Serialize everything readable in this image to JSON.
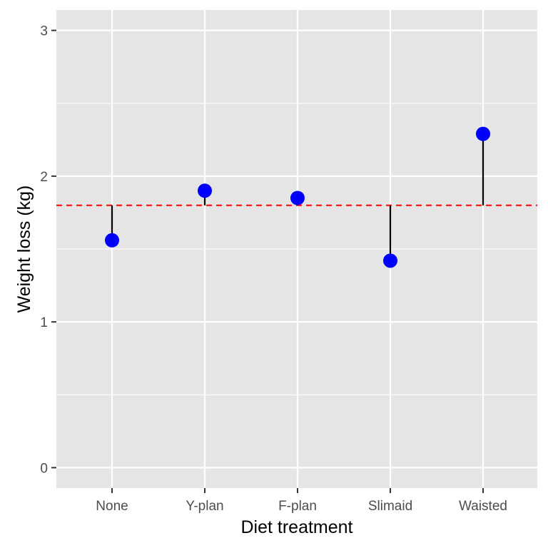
{
  "chart_data": {
    "type": "lollipop",
    "title": "",
    "xlabel": "Diet treatment",
    "ylabel": "Weight loss (kg)",
    "categories": [
      "None",
      "Y-plan",
      "F-plan",
      "Slimaid",
      "Waisted"
    ],
    "values": [
      1.56,
      1.9,
      1.85,
      1.42,
      2.29
    ],
    "reference_line": {
      "value": 1.8,
      "style": "dashed",
      "color": "#ff0000"
    },
    "ylim": [
      -0.14,
      3.14
    ],
    "yticks": [
      0,
      1,
      2,
      3
    ],
    "grid": true,
    "legend": "none",
    "colors": {
      "point": "#0000ff",
      "stem": "#000000",
      "panel": "#e5e5e5",
      "grid": "#ffffff"
    }
  }
}
